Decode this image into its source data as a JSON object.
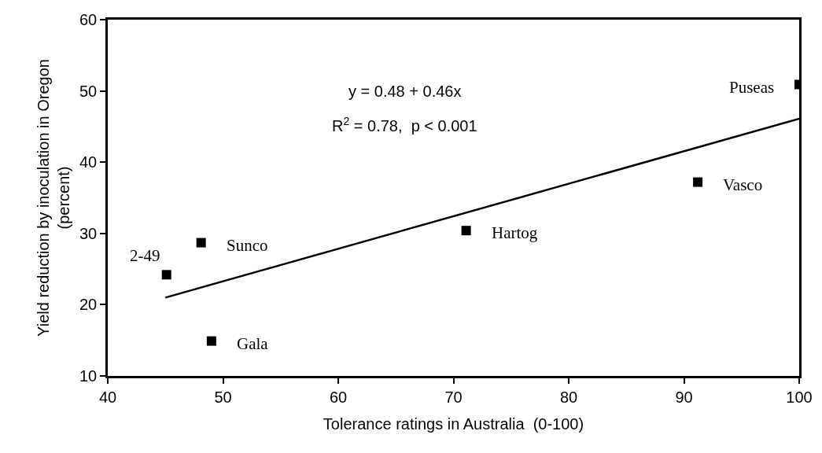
{
  "chart_data": {
    "type": "scatter",
    "xlabel": "Tolerance ratings in Australia  (0-100)",
    "ylabel": "Yield reduction by inoculation in Oregon\n(percent)",
    "xlim": [
      40,
      100
    ],
    "xticks": [
      40,
      50,
      60,
      70,
      80,
      90,
      100
    ],
    "ylim": [
      10,
      60
    ],
    "yticks": [
      10,
      20,
      30,
      40,
      50,
      60
    ],
    "marker": "square",
    "series": [
      {
        "color": "#000000",
        "x": [
          45.1,
          48.1,
          49.0,
          71.1,
          91.2,
          100
        ],
        "values": [
          24.2,
          28.7,
          14.9,
          30.4,
          37.2,
          50.9
        ]
      },
      {
        "type": "line",
        "marker": "none",
        "color": "#000000",
        "x": [
          45,
          100
        ],
        "values": [
          21.0,
          46.1
        ]
      }
    ],
    "annotations": [
      "y = 0.48 + 0.46x",
      "R$^{2}$ = 0.78,  p < 0.001",
      {
        "text": "2-49",
        "x": 45.1,
        "y": 24.2
      },
      {
        "text": "Sunco",
        "x": 48.1,
        "y": 28.7
      },
      {
        "text": "Gala",
        "x": 49.0,
        "y": 14.9
      },
      {
        "text": "Hartog",
        "x": 71.1,
        "y": 30.4
      },
      {
        "text": "Vasco",
        "x": 91.2,
        "y": 37.2
      },
      {
        "text": "Puseas",
        "x": 100,
        "y": 50.9
      }
    ]
  }
}
